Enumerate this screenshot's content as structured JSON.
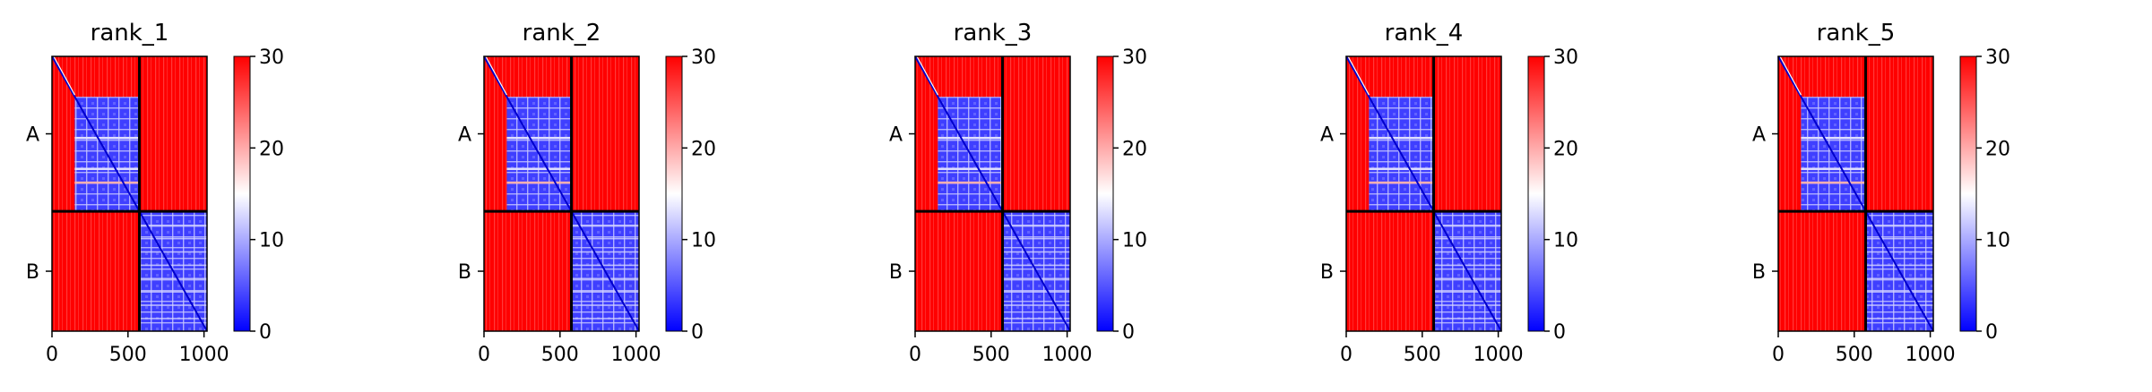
{
  "colors": {
    "high": "#ff0000",
    "mid": "#ffffff",
    "low": "#0000ff",
    "frame": "#000000"
  },
  "chart_data": [
    {
      "type": "heatmap",
      "title": "rank_1",
      "chain_labels": [
        "A",
        "B"
      ],
      "chain_boundary": 575,
      "domain_boundary_A": 150,
      "x_ticks": [
        0,
        500,
        1000
      ],
      "xlim": [
        0,
        1020
      ],
      "colorbar": {
        "vmin": 0,
        "vmax": 30,
        "ticks": [
          0,
          10,
          20,
          30
        ]
      },
      "colormap": "bwr",
      "grid": false
    },
    {
      "type": "heatmap",
      "title": "rank_2",
      "chain_labels": [
        "A",
        "B"
      ],
      "chain_boundary": 575,
      "domain_boundary_A": 150,
      "x_ticks": [
        0,
        500,
        1000
      ],
      "xlim": [
        0,
        1020
      ],
      "colorbar": {
        "vmin": 0,
        "vmax": 30,
        "ticks": [
          0,
          10,
          20,
          30
        ]
      },
      "colormap": "bwr",
      "grid": false
    },
    {
      "type": "heatmap",
      "title": "rank_3",
      "chain_labels": [
        "A",
        "B"
      ],
      "chain_boundary": 575,
      "domain_boundary_A": 150,
      "x_ticks": [
        0,
        500,
        1000
      ],
      "xlim": [
        0,
        1020
      ],
      "colorbar": {
        "vmin": 0,
        "vmax": 30,
        "ticks": [
          0,
          10,
          20,
          30
        ]
      },
      "colormap": "bwr",
      "grid": false
    },
    {
      "type": "heatmap",
      "title": "rank_4",
      "chain_labels": [
        "A",
        "B"
      ],
      "chain_boundary": 575,
      "domain_boundary_A": 150,
      "x_ticks": [
        0,
        500,
        1000
      ],
      "xlim": [
        0,
        1020
      ],
      "colorbar": {
        "vmin": 0,
        "vmax": 30,
        "ticks": [
          0,
          10,
          20,
          30
        ]
      },
      "colormap": "bwr",
      "grid": false
    },
    {
      "type": "heatmap",
      "title": "rank_5",
      "chain_labels": [
        "A",
        "B"
      ],
      "chain_boundary": 575,
      "domain_boundary_A": 150,
      "x_ticks": [
        0,
        500,
        1000
      ],
      "xlim": [
        0,
        1020
      ],
      "colorbar": {
        "vmin": 0,
        "vmax": 30,
        "ticks": [
          0,
          10,
          20,
          30
        ]
      },
      "colormap": "bwr",
      "grid": false
    }
  ]
}
